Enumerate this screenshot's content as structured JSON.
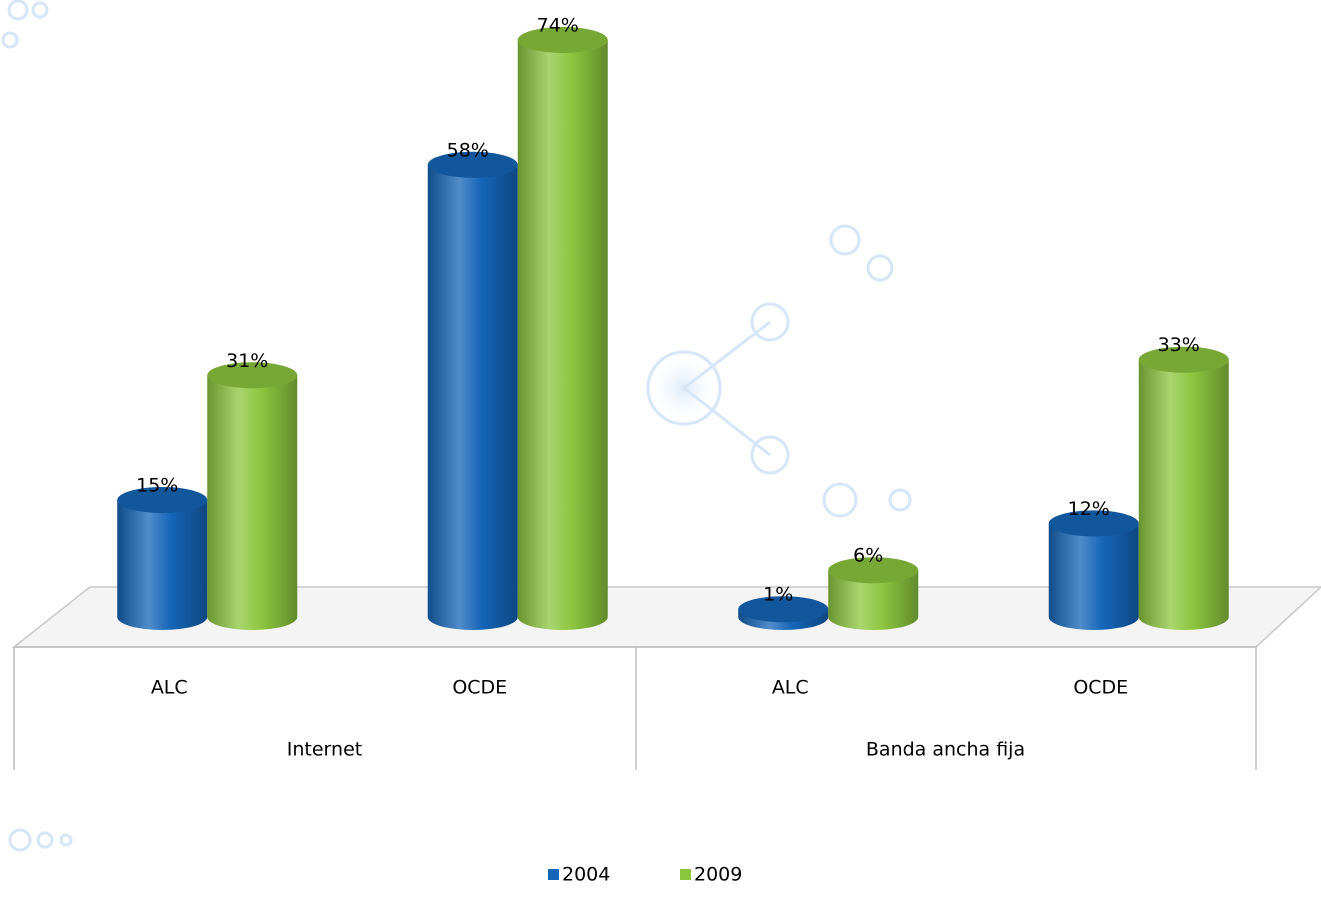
{
  "chart_data": {
    "type": "bar3d",
    "groups": [
      {
        "name": "Internet",
        "categories": [
          "ALC",
          "OCDE"
        ]
      },
      {
        "name": "Banda ancha fija",
        "categories": [
          "ALC",
          "OCDE"
        ]
      }
    ],
    "series": [
      {
        "name": "2004",
        "color": "#1565b8",
        "values": [
          15,
          58,
          1,
          12
        ],
        "value_labels": [
          "15%",
          "58%",
          "1%",
          "12%"
        ]
      },
      {
        "name": "2009",
        "color": "#8cc63f",
        "values": [
          31,
          74,
          6,
          33
        ],
        "value_labels": [
          "31%",
          "74%",
          "6%",
          "33%"
        ]
      }
    ],
    "legend": "bottom"
  }
}
